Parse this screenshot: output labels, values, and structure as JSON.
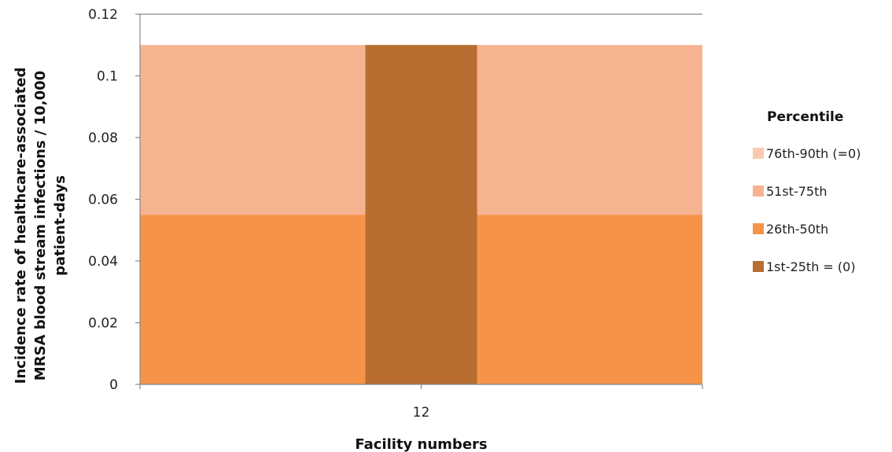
{
  "chart_data": {
    "type": "bar",
    "categories": [
      "12"
    ],
    "xlabel": "Facility numbers",
    "ylabel_lines": [
      "Incidence rate of healthcare-associated",
      "MRSA blood stream infections / 10,000",
      "patient-days"
    ],
    "ylim": [
      0,
      0.12
    ],
    "yticks": [
      "0",
      "0.02",
      "0.04",
      "0.06",
      "0.08",
      "0.1",
      "0.12"
    ],
    "ytick_values": [
      0,
      0.02,
      0.04,
      0.06,
      0.08,
      0.1,
      0.12
    ],
    "background_bands": [
      {
        "name": "76th-90th (=0)",
        "from": 0.11,
        "to": 0.11,
        "color": "#f9c9b0"
      },
      {
        "name": "51st-75th",
        "from": 0.055,
        "to": 0.11,
        "color": "#f6b390"
      },
      {
        "name": "26th-50th",
        "from": 0,
        "to": 0.055,
        "color": "#f59448"
      },
      {
        "name": "1st-25th = (0)",
        "from": 0,
        "to": 0,
        "color": "#b86e30"
      }
    ],
    "series": [
      {
        "category": "12",
        "value": 0.11,
        "color": "#b86e30"
      }
    ],
    "legend": {
      "title": "Percentile",
      "position": "right",
      "entries": [
        {
          "label": "76th-90th (=0)",
          "color": "#f9c9b0"
        },
        {
          "label": "51st-75th",
          "color": "#f6b390"
        },
        {
          "label": "26th-50th",
          "color": "#f59448"
        },
        {
          "label": "1st-25th = (0)",
          "color": "#b86e30"
        }
      ]
    },
    "grid": false
  }
}
